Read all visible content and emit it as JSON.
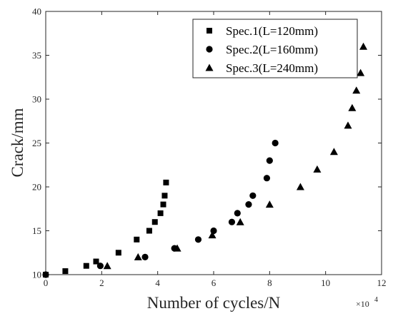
{
  "chart_data": {
    "type": "scatter",
    "xlabel": "Number of cycles/N",
    "ylabel": "Crack/mm",
    "x_exponent": {
      "base": "×10",
      "power": "4"
    },
    "xlim": [
      0,
      120000
    ],
    "ylim": [
      10,
      40
    ],
    "xticks": [
      0,
      20000,
      40000,
      60000,
      80000,
      100000,
      120000
    ],
    "xtick_labels": [
      "0",
      "2",
      "4",
      "6",
      "8",
      "10",
      "12"
    ],
    "yticks": [
      10,
      15,
      20,
      25,
      30,
      35,
      40
    ],
    "ytick_labels": [
      "10",
      "15",
      "20",
      "25",
      "30",
      "35",
      "40"
    ],
    "legend_position": "top-right",
    "series": [
      {
        "name": "Spec.1(L=120mm)",
        "marker": "square",
        "points": [
          [
            0,
            10
          ],
          [
            7000,
            10.4
          ],
          [
            14500,
            11
          ],
          [
            18000,
            11.5
          ],
          [
            26000,
            12.5
          ],
          [
            32500,
            14
          ],
          [
            37000,
            15
          ],
          [
            39000,
            16
          ],
          [
            41000,
            17
          ],
          [
            42000,
            18
          ],
          [
            42500,
            19
          ],
          [
            43000,
            20.5
          ]
        ]
      },
      {
        "name": "Spec.2(L=160mm)",
        "marker": "circle",
        "points": [
          [
            0,
            10
          ],
          [
            19500,
            11
          ],
          [
            35500,
            12
          ],
          [
            46000,
            13
          ],
          [
            54500,
            14
          ],
          [
            60000,
            15
          ],
          [
            66500,
            16
          ],
          [
            68500,
            17
          ],
          [
            72500,
            18
          ],
          [
            74000,
            19
          ],
          [
            79000,
            21
          ],
          [
            80000,
            23
          ],
          [
            82000,
            25
          ]
        ]
      },
      {
        "name": "Spec.3(L=240mm)",
        "marker": "triangle",
        "points": [
          [
            22000,
            11
          ],
          [
            33000,
            12
          ],
          [
            47000,
            13
          ],
          [
            59500,
            14.5
          ],
          [
            69500,
            16
          ],
          [
            80000,
            18
          ],
          [
            91000,
            20
          ],
          [
            97000,
            22
          ],
          [
            103000,
            24
          ],
          [
            108000,
            27
          ],
          [
            109500,
            29
          ],
          [
            111000,
            31
          ],
          [
            112500,
            33
          ],
          [
            113500,
            36
          ]
        ]
      }
    ]
  }
}
